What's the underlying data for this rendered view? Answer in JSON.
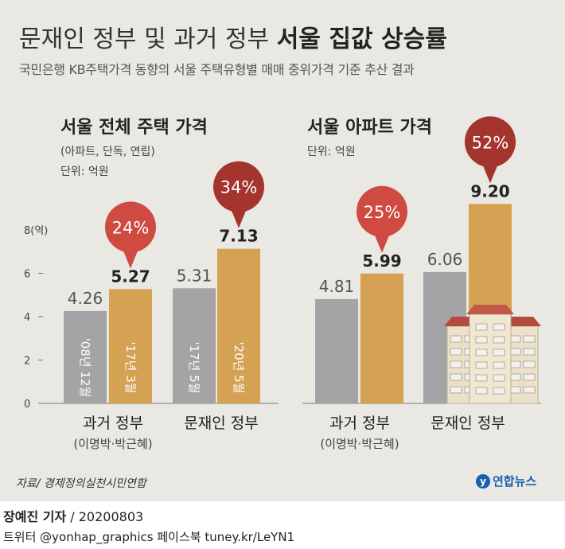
{
  "header": {
    "title_plain": "문재인 정부 및 과거 정부",
    "title_bold": "서울 집값 상승률",
    "subtitle": "국민은행 KB주택가격 동향의 서울 주택유형별 매매 중위가격 기준 추산 결과"
  },
  "chart_data": [
    {
      "type": "bar",
      "title": "서울 전체 주택 가격",
      "note": "(아파트, 단독, 연립)",
      "unit": "단위: 억원",
      "y_axis_label": "8(억)",
      "ylim": [
        0,
        8
      ],
      "yticks": [
        "0",
        "2",
        "4",
        "6",
        "8(억)"
      ],
      "categories": [
        {
          "label": "과거 정부",
          "sublabel": "(이명박·박근혜)"
        },
        {
          "label": "문재인 정부",
          "sublabel": ""
        }
      ],
      "series": [
        {
          "name": "start",
          "color": "#a4a4a6",
          "values": [
            4.26,
            5.31
          ],
          "value_labels": [
            "4.26",
            "5.31"
          ],
          "period_labels": [
            "'08년 12월",
            "'17년 5월"
          ]
        },
        {
          "name": "end",
          "color": "#d5a152",
          "values": [
            5.27,
            7.13
          ],
          "value_labels": [
            "5.27",
            "7.13"
          ],
          "period_labels": [
            "'17년 3월",
            "'20년 5월"
          ]
        }
      ],
      "increase": [
        "24%",
        "34%"
      ]
    },
    {
      "type": "bar",
      "title": "서울 아파트 가격",
      "unit": "단위: 억원",
      "ylim": [
        0,
        8
      ],
      "categories": [
        {
          "label": "과거 정부",
          "sublabel": "(이명박·박근혜)"
        },
        {
          "label": "문재인 정부",
          "sublabel": ""
        }
      ],
      "series": [
        {
          "name": "start",
          "color": "#a4a4a6",
          "values": [
            4.81,
            6.06
          ],
          "value_labels": [
            "4.81",
            "6.06"
          ]
        },
        {
          "name": "end",
          "color": "#d5a152",
          "values": [
            5.99,
            9.2
          ],
          "value_labels": [
            "5.99",
            "9.20"
          ]
        }
      ],
      "increase": [
        "25%",
        "52%"
      ]
    }
  ],
  "source": "자료/ 경제정의실천시민연합",
  "logo_text": "연합뉴스",
  "credit": {
    "reporter": "장예진 기자",
    "date": " / 20200803",
    "social": "트위터 @yonhap_graphics  페이스북 tuney.kr/LeYN1"
  },
  "colors": {
    "background": "#e9e8e3",
    "gray_bar": "#a4a4a6",
    "gold_bar": "#d5a152",
    "bubble_light": "#cf4a41",
    "bubble_dark": "#a3342e"
  }
}
